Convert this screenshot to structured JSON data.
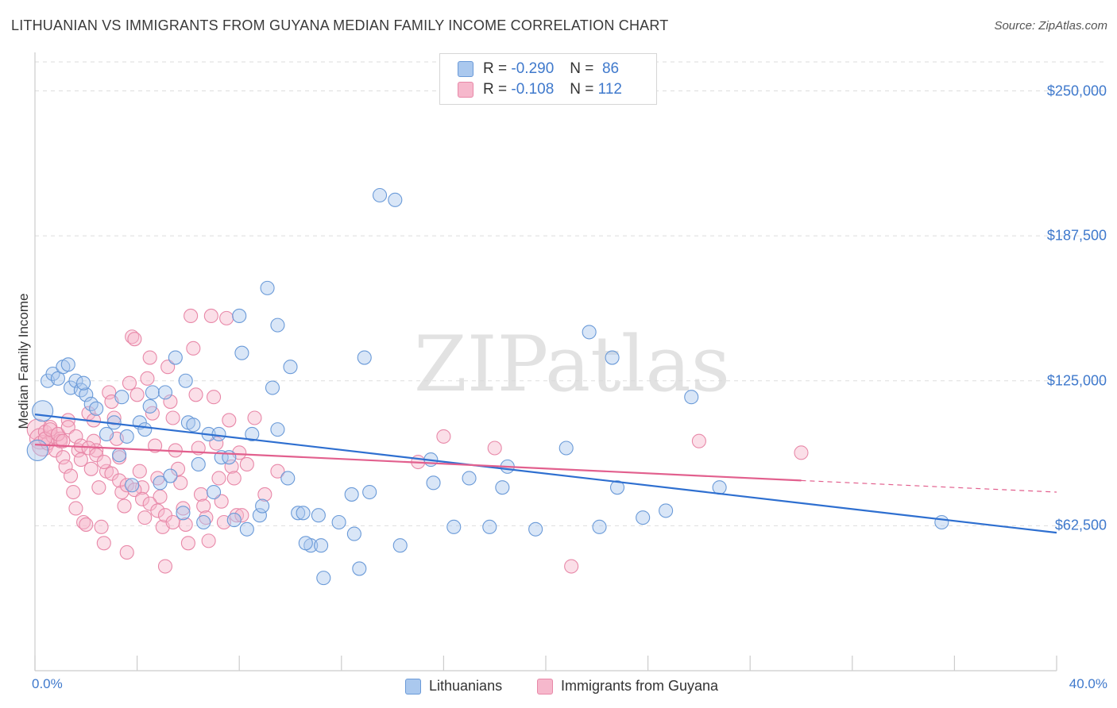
{
  "header": {
    "title": "LITHUANIAN VS IMMIGRANTS FROM GUYANA MEDIAN FAMILY INCOME CORRELATION CHART",
    "source": "Source: ZipAtlas.com"
  },
  "watermark": "ZIPatlas",
  "legend": {
    "rows": [
      {
        "r_label": "R =",
        "r_value": "-0.290",
        "n_label": "N =",
        "n_value": "86"
      },
      {
        "r_label": "R =",
        "r_value": "-0.108",
        "n_label": "N =",
        "n_value": "112"
      }
    ]
  },
  "colors": {
    "blue_fill": "#aac8ee",
    "blue_stroke": "#6a9ad8",
    "blue_line": "#2e6fd0",
    "pink_fill": "#f6b8cc",
    "pink_stroke": "#e888a8",
    "pink_line": "#e2608e",
    "grid": "#dddddd",
    "axis_text": "#3f79cc"
  },
  "chart_data": {
    "type": "scatter",
    "title": "LITHUANIAN VS IMMIGRANTS FROM GUYANA MEDIAN FAMILY INCOME CORRELATION CHART",
    "xlabel": "",
    "ylabel": "Median Family Income",
    "xlim": [
      0,
      40
    ],
    "ylim": [
      0,
      262500
    ],
    "x_tick_labels": [
      "0.0%",
      "40.0%"
    ],
    "y_ticks": [
      62500,
      125000,
      187500,
      250000
    ],
    "y_tick_labels": [
      "$62,500",
      "$125,000",
      "$187,500",
      "$250,000"
    ],
    "grid": true,
    "legend_position": "top-center",
    "series": [
      {
        "name": "Lithuanians",
        "trend": {
          "x": [
            0,
            40
          ],
          "y": [
            110500,
            59500
          ]
        },
        "points": [
          [
            0.1,
            95000
          ],
          [
            0.3,
            112000
          ],
          [
            0.5,
            125000
          ],
          [
            0.7,
            128000
          ],
          [
            0.9,
            126000
          ],
          [
            1.1,
            131000
          ],
          [
            1.3,
            132000
          ],
          [
            1.4,
            122000
          ],
          [
            1.6,
            125000
          ],
          [
            1.8,
            121000
          ],
          [
            2.0,
            119000
          ],
          [
            2.2,
            115000
          ],
          [
            2.4,
            113000
          ],
          [
            1.9,
            124000
          ],
          [
            2.8,
            102000
          ],
          [
            3.1,
            107000
          ],
          [
            3.3,
            93000
          ],
          [
            3.4,
            118000
          ],
          [
            3.6,
            101000
          ],
          [
            3.8,
            80000
          ],
          [
            4.1,
            107000
          ],
          [
            4.3,
            104000
          ],
          [
            4.5,
            114000
          ],
          [
            4.6,
            120000
          ],
          [
            4.9,
            81000
          ],
          [
            5.1,
            120000
          ],
          [
            5.3,
            84000
          ],
          [
            5.5,
            135000
          ],
          [
            5.8,
            68000
          ],
          [
            5.9,
            125000
          ],
          [
            6.0,
            107000
          ],
          [
            6.2,
            106000
          ],
          [
            6.4,
            89000
          ],
          [
            6.6,
            64000
          ],
          [
            6.8,
            102000
          ],
          [
            7.0,
            77000
          ],
          [
            7.2,
            102000
          ],
          [
            7.3,
            92000
          ],
          [
            7.6,
            92000
          ],
          [
            7.8,
            65000
          ],
          [
            8.0,
            153000
          ],
          [
            8.1,
            137000
          ],
          [
            8.3,
            61000
          ],
          [
            8.5,
            102000
          ],
          [
            8.8,
            67000
          ],
          [
            8.9,
            71000
          ],
          [
            9.1,
            165000
          ],
          [
            9.3,
            122000
          ],
          [
            9.5,
            149000
          ],
          [
            9.5,
            104000
          ],
          [
            9.9,
            83000
          ],
          [
            10.0,
            131000
          ],
          [
            10.3,
            68000
          ],
          [
            10.5,
            68000
          ],
          [
            10.8,
            54000
          ],
          [
            11.1,
            67000
          ],
          [
            11.2,
            54000
          ],
          [
            11.9,
            64000
          ],
          [
            12.4,
            76000
          ],
          [
            12.5,
            59000
          ],
          [
            12.7,
            44000
          ],
          [
            12.9,
            135000
          ],
          [
            13.1,
            77000
          ],
          [
            13.5,
            205000
          ],
          [
            14.1,
            203000
          ],
          [
            14.3,
            54000
          ],
          [
            15.5,
            91000
          ],
          [
            15.6,
            81000
          ],
          [
            16.4,
            62000
          ],
          [
            17.0,
            83000
          ],
          [
            17.8,
            62000
          ],
          [
            18.3,
            79000
          ],
          [
            18.5,
            88000
          ],
          [
            19.6,
            61000
          ],
          [
            20.8,
            96000
          ],
          [
            21.7,
            146000
          ],
          [
            22.1,
            62000
          ],
          [
            22.6,
            135000
          ],
          [
            22.8,
            79000
          ],
          [
            23.8,
            66000
          ],
          [
            24.7,
            69000
          ],
          [
            25.7,
            118000
          ],
          [
            26.8,
            79000
          ],
          [
            11.3,
            40000
          ],
          [
            10.6,
            55000
          ],
          [
            35.5,
            64000
          ]
        ]
      },
      {
        "name": "Immigrants from Guyana",
        "trend": {
          "x": [
            0,
            30
          ],
          "y": [
            97500,
            82000
          ]
        },
        "trend_extension": {
          "x": [
            30,
            40
          ],
          "y": [
            82000,
            77000
          ]
        },
        "points": [
          [
            0.1,
            104000
          ],
          [
            0.2,
            100000
          ],
          [
            0.3,
            97000
          ],
          [
            0.4,
            103000
          ],
          [
            0.5,
            98000
          ],
          [
            0.6,
            105000
          ],
          [
            0.7,
            101000
          ],
          [
            0.8,
            95000
          ],
          [
            0.9,
            102000
          ],
          [
            1.0,
            100000
          ],
          [
            1.1,
            92000
          ],
          [
            1.0,
            99000
          ],
          [
            1.2,
            88000
          ],
          [
            1.3,
            108000
          ],
          [
            1.4,
            84000
          ],
          [
            1.5,
            77000
          ],
          [
            1.6,
            70000
          ],
          [
            1.7,
            95000
          ],
          [
            1.8,
            91000
          ],
          [
            1.9,
            64000
          ],
          [
            2.0,
            63000
          ],
          [
            2.1,
            111000
          ],
          [
            2.2,
            87000
          ],
          [
            2.3,
            108000
          ],
          [
            2.3,
            99000
          ],
          [
            2.4,
            95000
          ],
          [
            2.5,
            79000
          ],
          [
            2.6,
            62000
          ],
          [
            2.7,
            55000
          ],
          [
            2.8,
            86000
          ],
          [
            2.9,
            120000
          ],
          [
            3.0,
            116000
          ],
          [
            3.1,
            109000
          ],
          [
            3.2,
            100000
          ],
          [
            3.3,
            92000
          ],
          [
            3.4,
            77000
          ],
          [
            3.5,
            71000
          ],
          [
            3.6,
            51000
          ],
          [
            3.7,
            124000
          ],
          [
            3.8,
            144000
          ],
          [
            3.9,
            143000
          ],
          [
            4.0,
            119000
          ],
          [
            4.1,
            86000
          ],
          [
            4.2,
            79000
          ],
          [
            4.3,
            66000
          ],
          [
            4.4,
            126000
          ],
          [
            4.5,
            135000
          ],
          [
            4.6,
            111000
          ],
          [
            4.7,
            97000
          ],
          [
            4.8,
            83000
          ],
          [
            4.9,
            75000
          ],
          [
            5.0,
            62000
          ],
          [
            5.1,
            45000
          ],
          [
            5.2,
            131000
          ],
          [
            5.3,
            116000
          ],
          [
            5.4,
            109000
          ],
          [
            5.5,
            95000
          ],
          [
            5.6,
            87000
          ],
          [
            5.7,
            81000
          ],
          [
            5.8,
            70000
          ],
          [
            5.9,
            63000
          ],
          [
            6.0,
            55000
          ],
          [
            6.1,
            153000
          ],
          [
            6.2,
            139000
          ],
          [
            6.3,
            119000
          ],
          [
            6.4,
            96000
          ],
          [
            6.5,
            76000
          ],
          [
            6.6,
            71000
          ],
          [
            6.7,
            66000
          ],
          [
            6.8,
            56000
          ],
          [
            6.9,
            153000
          ],
          [
            7.0,
            118000
          ],
          [
            7.1,
            98000
          ],
          [
            7.2,
            83000
          ],
          [
            7.3,
            73000
          ],
          [
            7.4,
            64000
          ],
          [
            7.5,
            152000
          ],
          [
            7.6,
            108000
          ],
          [
            7.7,
            88000
          ],
          [
            7.8,
            83000
          ],
          [
            7.9,
            67000
          ],
          [
            8.0,
            94000
          ],
          [
            8.1,
            67000
          ],
          [
            8.3,
            89000
          ],
          [
            8.6,
            109000
          ],
          [
            9.0,
            76000
          ],
          [
            9.5,
            86000
          ],
          [
            15.0,
            90000
          ],
          [
            16.0,
            101000
          ],
          [
            18.0,
            96000
          ],
          [
            21.0,
            45000
          ],
          [
            26.0,
            99000
          ],
          [
            30.0,
            94000
          ],
          [
            0.4,
            100000
          ],
          [
            0.6,
            104000
          ],
          [
            0.9,
            102000
          ],
          [
            1.1,
            99000
          ],
          [
            1.3,
            105000
          ],
          [
            1.6,
            101000
          ],
          [
            1.8,
            97000
          ],
          [
            2.1,
            96000
          ],
          [
            2.4,
            93000
          ],
          [
            2.7,
            90000
          ],
          [
            3.0,
            85000
          ],
          [
            3.3,
            82000
          ],
          [
            3.6,
            80000
          ],
          [
            3.9,
            78000
          ],
          [
            4.2,
            74000
          ],
          [
            4.5,
            72000
          ],
          [
            4.8,
            69000
          ],
          [
            5.1,
            67000
          ],
          [
            5.4,
            64000
          ]
        ]
      }
    ]
  }
}
